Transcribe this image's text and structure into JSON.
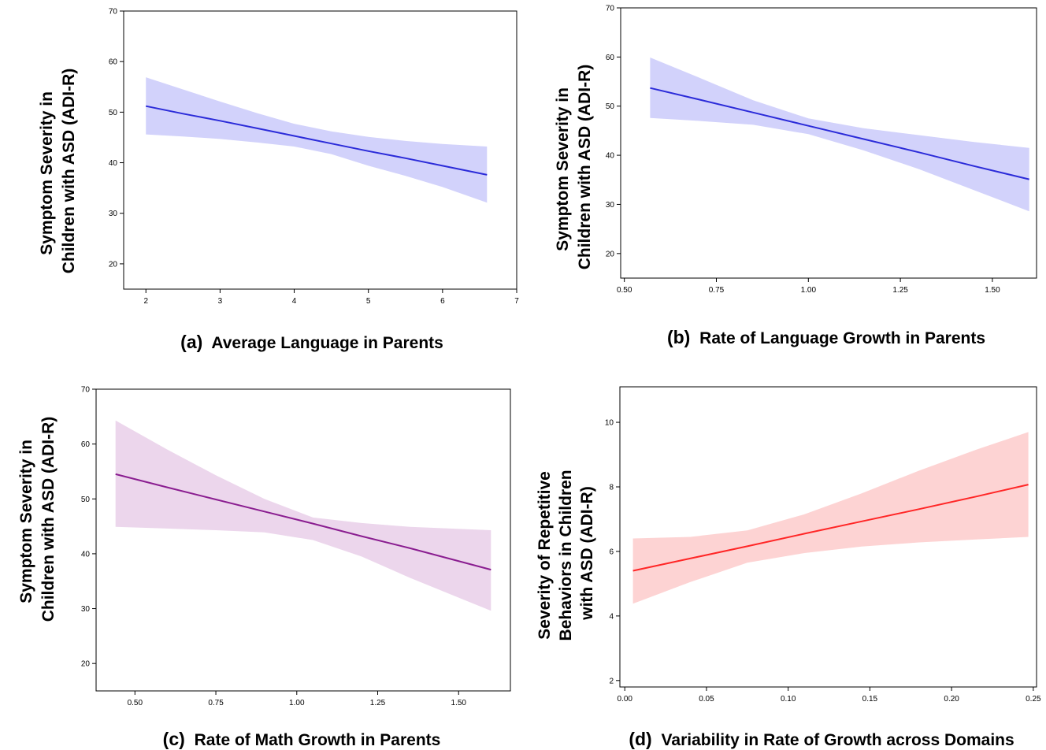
{
  "chart_data": [
    {
      "type": "line",
      "panel_tag": "(a)",
      "caption": "Average Language in Parents",
      "ylabel_lines": [
        "Symptom Severity in",
        "Children with ASD (ADI-R)"
      ],
      "xlim": [
        1.7,
        7.0
      ],
      "ylim": [
        15,
        70
      ],
      "xticks": [
        2,
        3,
        4,
        5,
        6,
        7
      ],
      "xtick_labels": [
        "2",
        "3",
        "4",
        "5",
        "6",
        "7"
      ],
      "yticks": [
        20,
        30,
        40,
        50,
        60,
        70
      ],
      "ytick_labels": [
        "20",
        "30",
        "40",
        "50",
        "60",
        "70"
      ],
      "line_color": "#2b2bd9",
      "band_color": "#d2d2fb",
      "series": [
        {
          "x": [
            2.0,
            2.5,
            3.0,
            3.5,
            4.0,
            4.5,
            5.0,
            5.5,
            6.0,
            6.6
          ],
          "y": [
            51.2,
            49.7,
            48.3,
            46.8,
            45.3,
            43.8,
            42.3,
            40.9,
            39.4,
            37.6
          ],
          "upper": [
            56.9,
            54.5,
            52.1,
            49.8,
            47.7,
            46.2,
            45.1,
            44.3,
            43.7,
            43.2
          ],
          "lower": [
            45.6,
            45.2,
            44.7,
            44.0,
            43.2,
            41.7,
            39.4,
            37.4,
            35.2,
            32.1
          ]
        }
      ]
    },
    {
      "type": "line",
      "panel_tag": "(b)",
      "caption": "Rate of Language Growth in Parents",
      "ylabel_lines": [
        "Symptom Severity in",
        "Children with ASD (ADI-R)"
      ],
      "xlim": [
        0.49,
        1.62
      ],
      "ylim": [
        15,
        70
      ],
      "xticks": [
        0.5,
        0.75,
        1.0,
        1.25,
        1.5
      ],
      "xtick_labels": [
        "0.50",
        "0.75",
        "1.00",
        "1.25",
        "1.50"
      ],
      "yticks": [
        20,
        30,
        40,
        50,
        60,
        70
      ],
      "ytick_labels": [
        "20",
        "30",
        "40",
        "50",
        "60",
        "70"
      ],
      "line_color": "#2b2bd9",
      "band_color": "#d2d2fb",
      "series": [
        {
          "x": [
            0.57,
            0.7,
            0.85,
            1.0,
            1.15,
            1.3,
            1.45,
            1.6
          ],
          "y": [
            53.7,
            51.4,
            48.7,
            46.0,
            43.3,
            40.6,
            37.8,
            35.1
          ],
          "upper": [
            59.9,
            55.9,
            51.2,
            47.5,
            45.5,
            44.1,
            42.7,
            41.5
          ],
          "lower": [
            47.6,
            47.0,
            46.2,
            44.3,
            41.0,
            37.2,
            32.9,
            28.6
          ]
        }
      ]
    },
    {
      "type": "line",
      "panel_tag": "(c)",
      "caption": "Rate of Math Growth in Parents",
      "ylabel_lines": [
        "Symptom Severity in",
        "Children with ASD (ADI-R)"
      ],
      "xlim": [
        0.38,
        1.66
      ],
      "ylim": [
        15,
        70
      ],
      "xticks": [
        0.5,
        0.75,
        1.0,
        1.25,
        1.5
      ],
      "xtick_labels": [
        "0.50",
        "0.75",
        "1.00",
        "1.25",
        "1.50"
      ],
      "yticks": [
        20,
        30,
        40,
        50,
        60,
        70
      ],
      "ytick_labels": [
        "20",
        "30",
        "40",
        "50",
        "60",
        "70"
      ],
      "line_color": "#8a1d90",
      "band_color": "#ecd6ec",
      "series": [
        {
          "x": [
            0.44,
            0.6,
            0.75,
            0.9,
            1.05,
            1.2,
            1.35,
            1.6
          ],
          "y": [
            54.5,
            52.1,
            49.9,
            47.7,
            45.5,
            43.2,
            41.0,
            37.1
          ],
          "upper": [
            64.3,
            59.0,
            54.3,
            50.0,
            46.6,
            45.6,
            44.9,
            44.3
          ],
          "lower": [
            44.9,
            44.6,
            44.3,
            43.9,
            42.5,
            39.5,
            35.6,
            29.6
          ]
        }
      ]
    },
    {
      "type": "line",
      "panel_tag": "(d)",
      "caption": "Variability in Rate of Growth across Domains",
      "ylabel_lines": [
        "Severity of Repetitive",
        "Behaviors in Children",
        "with ASD (ADI-R)"
      ],
      "xlim": [
        -0.003,
        0.252
      ],
      "ylim": [
        1.8,
        11.1
      ],
      "xticks": [
        0.0,
        0.05,
        0.1,
        0.15,
        0.2,
        0.25
      ],
      "xtick_labels": [
        "0.00",
        "0.05",
        "0.10",
        "0.15",
        "0.20",
        "0.25"
      ],
      "yticks": [
        2,
        4,
        6,
        8,
        10
      ],
      "ytick_labels": [
        "2",
        "4",
        "6",
        "8",
        "10"
      ],
      "line_color": "#ff2626",
      "band_color": "#fdd3d3",
      "series": [
        {
          "x": [
            0.005,
            0.04,
            0.075,
            0.11,
            0.145,
            0.18,
            0.215,
            0.247
          ],
          "y": [
            5.4,
            5.78,
            6.16,
            6.55,
            6.93,
            7.31,
            7.7,
            8.07
          ],
          "upper": [
            6.4,
            6.45,
            6.65,
            7.15,
            7.8,
            8.5,
            9.15,
            9.7
          ],
          "lower": [
            4.38,
            5.05,
            5.65,
            5.95,
            6.15,
            6.28,
            6.37,
            6.45
          ]
        }
      ]
    }
  ]
}
